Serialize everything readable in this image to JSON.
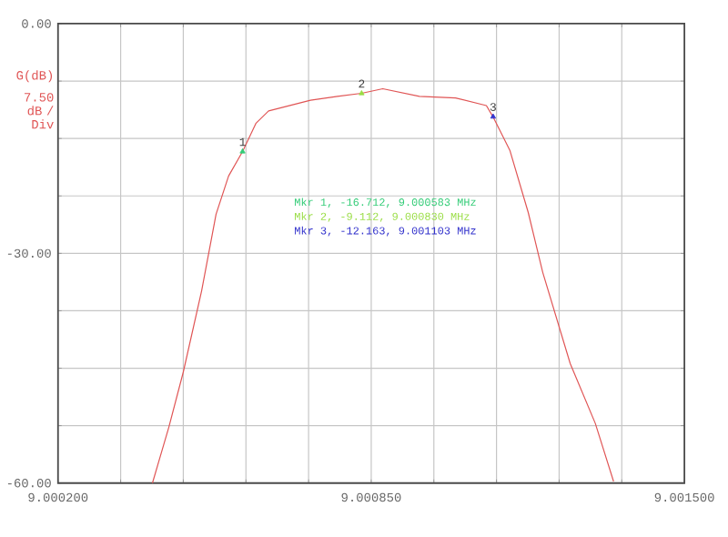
{
  "chart_data": {
    "type": "line",
    "ylabel": "G(dB)",
    "xlim": [
      9.0002,
      9.0015
    ],
    "ylim": [
      -60,
      0
    ],
    "xticks": [
      {
        "value": 9.0002,
        "label": "9.000200"
      },
      {
        "value": 9.00033,
        "label": null
      },
      {
        "value": 9.00046,
        "label": null
      },
      {
        "value": 9.00059,
        "label": null
      },
      {
        "value": 9.00072,
        "label": null
      },
      {
        "value": 9.00085,
        "label": "9.000850"
      },
      {
        "value": 9.00098,
        "label": null
      },
      {
        "value": 9.00111,
        "label": null
      },
      {
        "value": 9.00124,
        "label": null
      },
      {
        "value": 9.00137,
        "label": null
      },
      {
        "value": 9.0015,
        "label": "9.001500"
      }
    ],
    "yticks": [
      {
        "value": 0,
        "label": "0.00"
      },
      {
        "value": -7.5,
        "label": null
      },
      {
        "value": -15,
        "label": null
      },
      {
        "value": -22.5,
        "label": null
      },
      {
        "value": -30,
        "label": "-30.00"
      },
      {
        "value": -37.5,
        "label": null
      },
      {
        "value": -45,
        "label": null
      },
      {
        "value": -52.5,
        "label": null
      },
      {
        "value": -60,
        "label": "-60.00"
      }
    ],
    "grid": true,
    "series": [
      {
        "color": "#e05555",
        "x": [
          9.000396,
          9.00043,
          9.00046,
          9.000498,
          9.000528,
          9.000554,
          9.000583,
          9.000611,
          9.000637,
          9.000724,
          9.00078,
          9.00083,
          9.000874,
          9.00095,
          9.001025,
          9.001089,
          9.001103,
          9.001138,
          9.001176,
          9.001206,
          9.001263,
          9.001315,
          9.001353
        ],
        "values": [
          -60,
          -52.7,
          -45.5,
          -34.9,
          -24.9,
          -19.9,
          -16.7,
          -13.0,
          -11.4,
          -10.0,
          -9.5,
          -9.1,
          -8.5,
          -9.5,
          -9.7,
          -10.7,
          -12.2,
          -16.6,
          -24.7,
          -32.5,
          -44.4,
          -52.2,
          -59.8
        ]
      },
      {
        "type": "scatter",
        "marker": "triangle",
        "x": [
          9.000583,
          9.00083,
          9.001103
        ],
        "values": [
          -16.712,
          -9.112,
          -12.163
        ],
        "colors": [
          "#33cc77",
          "#99dd44",
          "#3333cc"
        ]
      }
    ],
    "annotations": [
      {
        "text": "1",
        "x": 9.000583,
        "y": -16.712
      },
      {
        "text": "2",
        "x": 9.00083,
        "y": -9.112
      },
      {
        "text": "3",
        "x": 9.001103,
        "y": -12.163
      },
      "Mkr 1, -16.712, 9.000583 MHz",
      "Mkr 2, -9.112, 9.000830 MHz",
      "Mkr 3, -12.163, 9.001103 MHz",
      "7.50 dB / Div"
    ]
  }
}
